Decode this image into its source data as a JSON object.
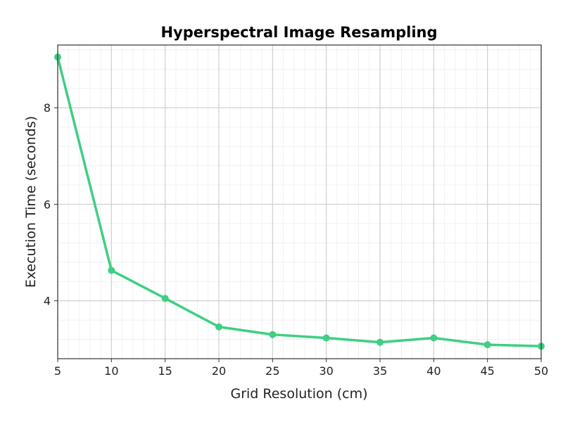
{
  "chart_data": {
    "type": "line",
    "title": "Hyperspectral Image Resampling",
    "xlabel": "Grid Resolution (cm)",
    "ylabel": "Execution Time (seconds)",
    "x": [
      5,
      10,
      15,
      20,
      25,
      30,
      35,
      40,
      45,
      50
    ],
    "series": [
      {
        "values": [
          9.05,
          4.63,
          4.05,
          3.46,
          3.3,
          3.23,
          3.14,
          3.23,
          3.09,
          3.06
        ],
        "color": "#3ecf82"
      }
    ],
    "xlim": [
      5,
      50
    ],
    "ylim": [
      2.8,
      9.3
    ],
    "xticks": [
      5,
      10,
      15,
      20,
      25,
      30,
      35,
      40,
      45,
      50
    ],
    "yticks": [
      4,
      6,
      8
    ],
    "grid": true,
    "minor_grid": true
  }
}
